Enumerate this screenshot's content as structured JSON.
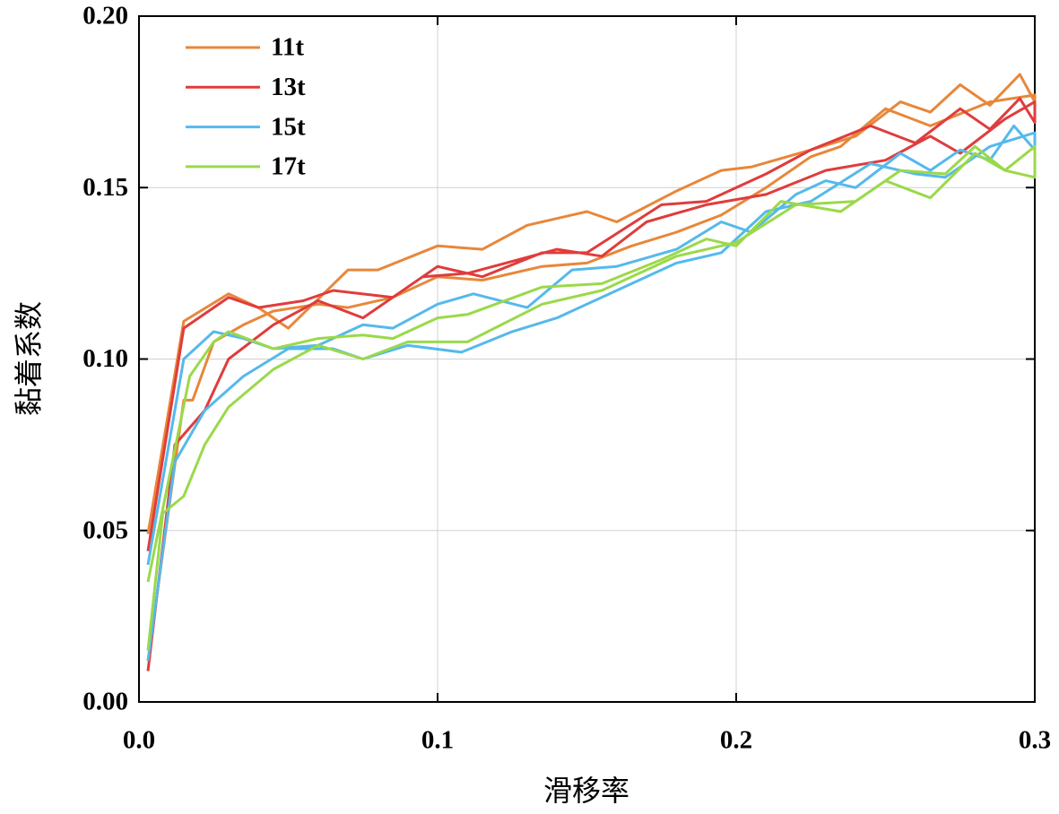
{
  "chart_data": {
    "type": "line",
    "x_label": "滑移率",
    "y_label": "黏着系数",
    "xlim": [
      0,
      0.3
    ],
    "ylim": [
      0,
      0.2
    ],
    "xticks": [
      {
        "value": 0,
        "label": "0.0"
      },
      0.1,
      0.2,
      0.3
    ],
    "yticks": [
      {
        "value": 0,
        "label": "0.00"
      },
      {
        "value": 0.05,
        "label": "0.05"
      },
      {
        "value": 0.1,
        "label": "0.10"
      },
      {
        "value": 0.15,
        "label": "0.15"
      },
      {
        "value": 0.2,
        "label": "0.20"
      }
    ],
    "grid": true,
    "legend": "upper left",
    "series": [
      {
        "name": "11t",
        "color": "#e8873a",
        "x": [
          0.003,
          0.015,
          0.03,
          0.04,
          0.05,
          0.07,
          0.08,
          0.1,
          0.115,
          0.13,
          0.15,
          0.16,
          0.18,
          0.195,
          0.205,
          0.225,
          0.24,
          0.255,
          0.265,
          0.275,
          0.285,
          0.295,
          0.3,
          0.3,
          0.285,
          0.265,
          0.25,
          0.235,
          0.225,
          0.21,
          0.195,
          0.18,
          0.165,
          0.15,
          0.135,
          0.115,
          0.1,
          0.085,
          0.07,
          0.06,
          0.045,
          0.035,
          0.025,
          0.018,
          0.015,
          0.003
        ],
        "values": [
          0.049,
          0.111,
          0.119,
          0.115,
          0.109,
          0.126,
          0.126,
          0.133,
          0.132,
          0.139,
          0.143,
          0.14,
          0.149,
          0.155,
          0.156,
          0.161,
          0.165,
          0.175,
          0.172,
          0.18,
          0.174,
          0.183,
          0.175,
          0.177,
          0.175,
          0.168,
          0.173,
          0.162,
          0.159,
          0.15,
          0.142,
          0.137,
          0.133,
          0.128,
          0.127,
          0.123,
          0.124,
          0.118,
          0.115,
          0.116,
          0.114,
          0.11,
          0.105,
          0.088,
          0.088,
          0.012
        ]
      },
      {
        "name": "13t",
        "color": "#e03c3c",
        "x": [
          0.003,
          0.015,
          0.03,
          0.04,
          0.055,
          0.065,
          0.085,
          0.1,
          0.115,
          0.135,
          0.15,
          0.175,
          0.19,
          0.21,
          0.225,
          0.245,
          0.26,
          0.275,
          0.285,
          0.295,
          0.3,
          0.3,
          0.29,
          0.275,
          0.265,
          0.25,
          0.23,
          0.21,
          0.19,
          0.17,
          0.155,
          0.14,
          0.11,
          0.095,
          0.075,
          0.06,
          0.045,
          0.03,
          0.022,
          0.012,
          0.003
        ],
        "values": [
          0.044,
          0.109,
          0.118,
          0.115,
          0.117,
          0.12,
          0.118,
          0.127,
          0.124,
          0.131,
          0.131,
          0.145,
          0.146,
          0.154,
          0.161,
          0.168,
          0.163,
          0.173,
          0.167,
          0.176,
          0.169,
          0.175,
          0.17,
          0.16,
          0.165,
          0.158,
          0.155,
          0.148,
          0.145,
          0.14,
          0.13,
          0.132,
          0.125,
          0.124,
          0.112,
          0.117,
          0.11,
          0.1,
          0.085,
          0.075,
          0.009
        ]
      },
      {
        "name": "15t",
        "color": "#55b9ec",
        "x": [
          0.003,
          0.015,
          0.025,
          0.035,
          0.045,
          0.06,
          0.075,
          0.085,
          0.1,
          0.112,
          0.13,
          0.145,
          0.16,
          0.18,
          0.195,
          0.205,
          0.22,
          0.23,
          0.24,
          0.255,
          0.265,
          0.275,
          0.285,
          0.293,
          0.3,
          0.3,
          0.285,
          0.27,
          0.26,
          0.245,
          0.225,
          0.21,
          0.195,
          0.18,
          0.16,
          0.14,
          0.125,
          0.108,
          0.09,
          0.075,
          0.065,
          0.05,
          0.035,
          0.022,
          0.012,
          0.003
        ],
        "values": [
          0.04,
          0.1,
          0.108,
          0.106,
          0.103,
          0.104,
          0.11,
          0.109,
          0.116,
          0.119,
          0.115,
          0.126,
          0.127,
          0.132,
          0.14,
          0.137,
          0.148,
          0.152,
          0.15,
          0.16,
          0.155,
          0.161,
          0.158,
          0.168,
          0.161,
          0.166,
          0.162,
          0.153,
          0.154,
          0.157,
          0.146,
          0.143,
          0.131,
          0.128,
          0.12,
          0.112,
          0.108,
          0.102,
          0.104,
          0.1,
          0.103,
          0.103,
          0.095,
          0.085,
          0.07,
          0.012
        ]
      },
      {
        "name": "17t",
        "color": "#9ad94a",
        "x": [
          0.003,
          0.017,
          0.025,
          0.03,
          0.045,
          0.06,
          0.075,
          0.085,
          0.1,
          0.11,
          0.135,
          0.155,
          0.175,
          0.19,
          0.2,
          0.215,
          0.235,
          0.25,
          0.265,
          0.28,
          0.29,
          0.3,
          0.3,
          0.29,
          0.28,
          0.27,
          0.255,
          0.24,
          0.22,
          0.2,
          0.18,
          0.155,
          0.135,
          0.11,
          0.09,
          0.075,
          0.06,
          0.045,
          0.03,
          0.022,
          0.015,
          0.008,
          0.003
        ],
        "values": [
          0.035,
          0.095,
          0.105,
          0.108,
          0.103,
          0.106,
          0.107,
          0.106,
          0.112,
          0.113,
          0.121,
          0.122,
          0.129,
          0.135,
          0.133,
          0.146,
          0.143,
          0.152,
          0.147,
          0.16,
          0.155,
          0.162,
          0.153,
          0.155,
          0.162,
          0.154,
          0.155,
          0.146,
          0.145,
          0.134,
          0.13,
          0.12,
          0.116,
          0.105,
          0.105,
          0.1,
          0.104,
          0.097,
          0.086,
          0.075,
          0.06,
          0.055,
          0.015
        ]
      }
    ]
  }
}
